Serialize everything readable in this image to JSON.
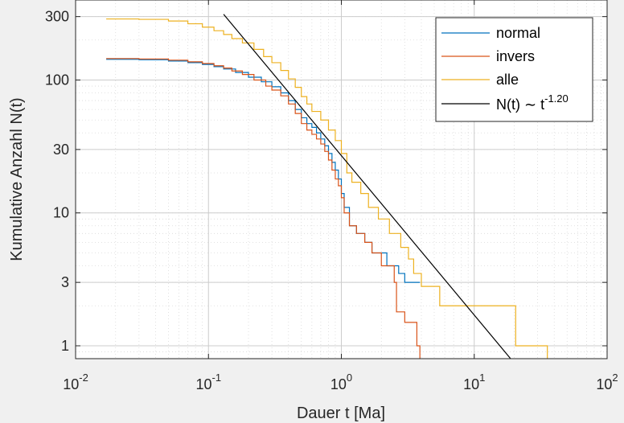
{
  "chart_data": {
    "type": "line",
    "xscale": "log",
    "yscale": "log",
    "xlim": [
      0.01,
      100
    ],
    "ylim": [
      0.8,
      400
    ],
    "grid": true,
    "minor_grid": true,
    "xlabel": "Dauer t [Ma]",
    "ylabel": "Kumulative Anzahl N(t)",
    "x_ticks": [
      {
        "value": 0.01,
        "base": "10",
        "exp": "-2"
      },
      {
        "value": 0.1,
        "base": "10",
        "exp": "-1"
      },
      {
        "value": 1,
        "base": "10",
        "exp": "0"
      },
      {
        "value": 10,
        "base": "10",
        "exp": "1"
      },
      {
        "value": 100,
        "base": "10",
        "exp": "2"
      }
    ],
    "y_ticks": [
      {
        "value": 1,
        "label": "1"
      },
      {
        "value": 3,
        "label": "3"
      },
      {
        "value": 10,
        "label": "10"
      },
      {
        "value": 30,
        "label": "30"
      },
      {
        "value": 100,
        "label": "100"
      },
      {
        "value": 300,
        "label": "300"
      }
    ],
    "legend_position": "top-right",
    "series": [
      {
        "name": "normal",
        "color": "#0072bd",
        "step": true,
        "points": [
          [
            0.017,
            143
          ],
          [
            0.03,
            142
          ],
          [
            0.05,
            139
          ],
          [
            0.07,
            135
          ],
          [
            0.09,
            131
          ],
          [
            0.11,
            126
          ],
          [
            0.13,
            121
          ],
          [
            0.16,
            114
          ],
          [
            0.2,
            105
          ],
          [
            0.25,
            97
          ],
          [
            0.3,
            89
          ],
          [
            0.35,
            80
          ],
          [
            0.4,
            70
          ],
          [
            0.45,
            60
          ],
          [
            0.5,
            52
          ],
          [
            0.55,
            47
          ],
          [
            0.6,
            44
          ],
          [
            0.65,
            40
          ],
          [
            0.7,
            36
          ],
          [
            0.75,
            32
          ],
          [
            0.8,
            28
          ],
          [
            0.85,
            24
          ],
          [
            0.9,
            21
          ],
          [
            0.95,
            18
          ],
          [
            1.0,
            14
          ],
          [
            1.05,
            11
          ],
          [
            1.15,
            8
          ],
          [
            1.3,
            7
          ],
          [
            1.5,
            6
          ],
          [
            1.7,
            5
          ],
          [
            1.9,
            5
          ],
          [
            2.2,
            4
          ],
          [
            2.7,
            3.5
          ],
          [
            3.0,
            3
          ],
          [
            3.9,
            3
          ]
        ]
      },
      {
        "name": "invers",
        "color": "#d95319",
        "step": true,
        "points": [
          [
            0.017,
            145
          ],
          [
            0.03,
            144
          ],
          [
            0.05,
            141
          ],
          [
            0.07,
            137
          ],
          [
            0.09,
            133
          ],
          [
            0.11,
            128
          ],
          [
            0.13,
            123
          ],
          [
            0.15,
            117
          ],
          [
            0.18,
            110
          ],
          [
            0.22,
            100
          ],
          [
            0.27,
            90
          ],
          [
            0.3,
            84
          ],
          [
            0.35,
            76
          ],
          [
            0.4,
            66
          ],
          [
            0.45,
            56
          ],
          [
            0.5,
            47
          ],
          [
            0.55,
            42
          ],
          [
            0.6,
            39
          ],
          [
            0.65,
            36
          ],
          [
            0.7,
            33
          ],
          [
            0.75,
            29
          ],
          [
            0.8,
            25
          ],
          [
            0.85,
            21
          ],
          [
            0.9,
            18
          ],
          [
            0.95,
            16
          ],
          [
            1.0,
            13
          ],
          [
            1.05,
            10
          ],
          [
            1.15,
            8
          ],
          [
            1.3,
            7
          ],
          [
            1.5,
            6
          ],
          [
            1.7,
            5
          ],
          [
            2.0,
            4
          ],
          [
            2.5,
            3
          ],
          [
            2.6,
            1.8
          ],
          [
            3.0,
            1.5
          ],
          [
            3.7,
            1.0
          ],
          [
            3.9,
            0.8
          ]
        ]
      },
      {
        "name": "alle",
        "color": "#edb120",
        "step": true,
        "points": [
          [
            0.017,
            288
          ],
          [
            0.03,
            286
          ],
          [
            0.05,
            278
          ],
          [
            0.07,
            265
          ],
          [
            0.09,
            250
          ],
          [
            0.11,
            235
          ],
          [
            0.13,
            220
          ],
          [
            0.15,
            205
          ],
          [
            0.18,
            190
          ],
          [
            0.22,
            170
          ],
          [
            0.26,
            150
          ],
          [
            0.3,
            135
          ],
          [
            0.35,
            118
          ],
          [
            0.4,
            102
          ],
          [
            0.45,
            88
          ],
          [
            0.5,
            75
          ],
          [
            0.55,
            66
          ],
          [
            0.6,
            58
          ],
          [
            0.7,
            50
          ],
          [
            0.8,
            42
          ],
          [
            0.9,
            35
          ],
          [
            1.0,
            28
          ],
          [
            1.1,
            20
          ],
          [
            1.2,
            17
          ],
          [
            1.4,
            14
          ],
          [
            1.6,
            11
          ],
          [
            1.9,
            9
          ],
          [
            2.3,
            7
          ],
          [
            2.8,
            5.5
          ],
          [
            3.2,
            4.5
          ],
          [
            3.5,
            3.5
          ],
          [
            4.0,
            2.8
          ],
          [
            5.5,
            2.0
          ],
          [
            8.0,
            2.0
          ],
          [
            20,
            2.0
          ],
          [
            20.5,
            1.0
          ],
          [
            35,
            1.0
          ],
          [
            35.5,
            0.8
          ]
        ]
      },
      {
        "name": "N(t) ~ t^-1.20",
        "color": "#000000",
        "step": false,
        "fit": {
          "coefficient": 27,
          "exponent": -1.2
        },
        "x_range": [
          0.13,
          20
        ]
      }
    ],
    "legend": [
      {
        "label": "normal",
        "color": "#0072bd"
      },
      {
        "label": "invers",
        "color": "#d95319"
      },
      {
        "label": "alle",
        "color": "#edb120"
      },
      {
        "label_prefix": "N(t) ",
        "label_sim": "∼",
        "label_base": " t",
        "label_exp": "-1.20",
        "color": "#000000"
      }
    ]
  }
}
